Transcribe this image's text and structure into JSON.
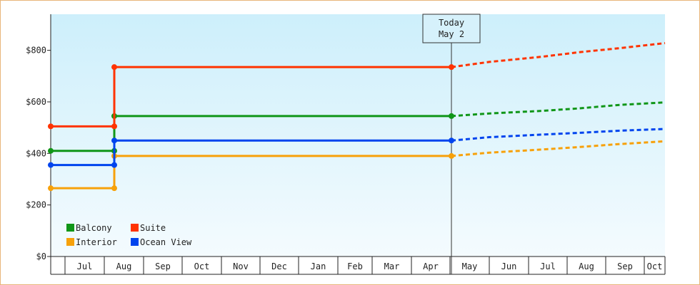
{
  "chart_data": {
    "type": "line",
    "title": "",
    "xlabel": "",
    "ylabel": "",
    "ylim": [
      0,
      940
    ],
    "yticks": [
      0,
      200,
      400,
      600,
      800
    ],
    "ytick_labels": [
      "$0",
      "$200",
      "$400",
      "$600",
      "$800"
    ],
    "x_month_labels": [
      "Jul",
      "Aug",
      "Sep",
      "Oct",
      "Nov",
      "Dec",
      "Jan",
      "Feb",
      "Mar",
      "Apr",
      "May",
      "Jun",
      "Jul",
      "Aug",
      "Sep",
      "Oct"
    ],
    "today_label": [
      "Today",
      "May 2"
    ],
    "grid": false,
    "legend_position": "bottom-left",
    "series": [
      {
        "name": "Balcony",
        "color": "#109618",
        "history": [
          {
            "x": "Jun 10",
            "y": 410
          },
          {
            "x": "Aug 1",
            "y": 410
          },
          {
            "x": "Aug 1",
            "y": 545
          },
          {
            "x": "May 2",
            "y": 545
          }
        ],
        "forecast": [
          {
            "x": "May 2",
            "y": 545
          },
          {
            "x": "Jun",
            "y": 555
          },
          {
            "x": "Jul",
            "y": 565
          },
          {
            "x": "Aug",
            "y": 575
          },
          {
            "x": "Sep",
            "y": 588
          },
          {
            "x": "Oct",
            "y": 598
          }
        ]
      },
      {
        "name": "Suite",
        "color": "#ff3300",
        "history": [
          {
            "x": "Jun 10",
            "y": 505
          },
          {
            "x": "Aug 1",
            "y": 505
          },
          {
            "x": "Aug 1",
            "y": 735
          },
          {
            "x": "May 2",
            "y": 735
          }
        ],
        "forecast": [
          {
            "x": "May 2",
            "y": 735
          },
          {
            "x": "Jun",
            "y": 755
          },
          {
            "x": "Jul",
            "y": 775
          },
          {
            "x": "Aug",
            "y": 793
          },
          {
            "x": "Sep",
            "y": 808
          },
          {
            "x": "Oct",
            "y": 828
          }
        ]
      },
      {
        "name": "Interior",
        "color": "#f7a10a",
        "history": [
          {
            "x": "Jun 10",
            "y": 265
          },
          {
            "x": "Aug 1",
            "y": 265
          },
          {
            "x": "Aug 1",
            "y": 390
          },
          {
            "x": "May 2",
            "y": 390
          }
        ],
        "forecast": [
          {
            "x": "May 2",
            "y": 390
          },
          {
            "x": "Jun",
            "y": 403
          },
          {
            "x": "Jul",
            "y": 415
          },
          {
            "x": "Aug",
            "y": 425
          },
          {
            "x": "Sep",
            "y": 436
          },
          {
            "x": "Oct",
            "y": 447
          }
        ]
      },
      {
        "name": "Ocean View",
        "color": "#0044ee",
        "history": [
          {
            "x": "Jun 10",
            "y": 355
          },
          {
            "x": "Aug 1",
            "y": 355
          },
          {
            "x": "Aug 1",
            "y": 450
          },
          {
            "x": "May 2",
            "y": 450
          }
        ],
        "forecast": [
          {
            "x": "May 2",
            "y": 450
          },
          {
            "x": "Jun",
            "y": 463
          },
          {
            "x": "Jul",
            "y": 473
          },
          {
            "x": "Aug",
            "y": 480
          },
          {
            "x": "Sep",
            "y": 488
          },
          {
            "x": "Oct",
            "y": 495
          }
        ]
      }
    ]
  }
}
